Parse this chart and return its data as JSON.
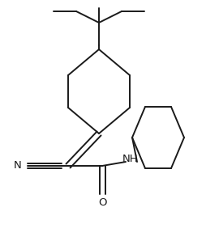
{
  "background_color": "#ffffff",
  "line_color": "#1a1a1a",
  "line_width": 1.4,
  "figsize": [
    2.54,
    2.88
  ],
  "dpi": 100,
  "xlim": [
    0,
    254
  ],
  "ylim": [
    0,
    288
  ]
}
